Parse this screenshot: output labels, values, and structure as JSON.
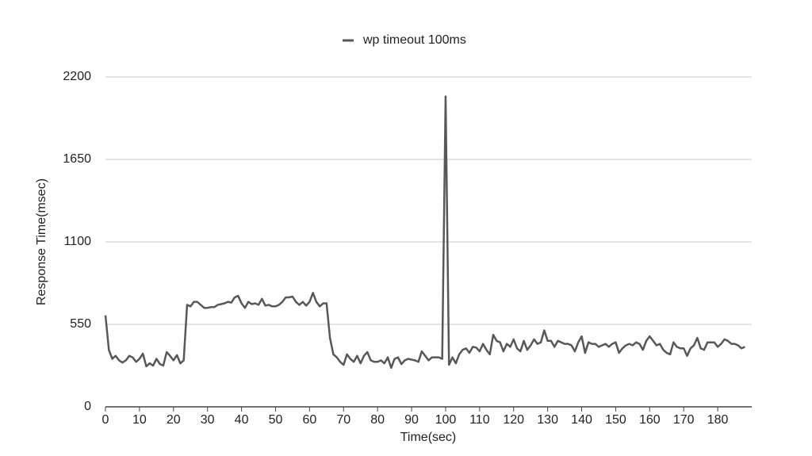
{
  "chart_data": {
    "type": "line",
    "xlabel": "Time(sec)",
    "ylabel": "Response Time(msec)",
    "x": [
      0,
      1,
      2,
      3,
      4,
      5,
      6,
      7,
      8,
      9,
      10,
      11,
      12,
      13,
      14,
      15,
      16,
      17,
      18,
      19,
      20,
      21,
      22,
      23,
      24,
      25,
      26,
      27,
      28,
      29,
      30,
      31,
      32,
      33,
      34,
      35,
      36,
      37,
      38,
      39,
      40,
      41,
      42,
      43,
      44,
      45,
      46,
      47,
      48,
      49,
      50,
      51,
      52,
      53,
      54,
      55,
      56,
      57,
      58,
      59,
      60,
      61,
      62,
      63,
      64,
      65,
      66,
      67,
      68,
      69,
      70,
      71,
      72,
      73,
      74,
      75,
      76,
      77,
      78,
      79,
      80,
      81,
      82,
      83,
      84,
      85,
      86,
      87,
      88,
      89,
      90,
      91,
      92,
      93,
      94,
      95,
      96,
      97,
      98,
      99,
      100,
      101,
      102,
      103,
      104,
      105,
      106,
      107,
      108,
      109,
      110,
      111,
      112,
      113,
      114,
      115,
      116,
      117,
      118,
      119,
      120,
      121,
      122,
      123,
      124,
      125,
      126,
      127,
      128,
      129,
      130,
      131,
      132,
      133,
      134,
      135,
      136,
      137,
      138,
      139,
      140,
      141,
      142,
      143,
      144,
      145,
      146,
      147,
      148,
      149,
      150,
      151,
      152,
      153,
      154,
      155,
      156,
      157,
      158,
      159,
      160,
      161,
      162,
      163,
      164,
      165,
      166,
      167,
      168,
      169,
      170,
      171,
      172,
      173,
      174,
      175,
      176,
      177,
      178,
      179,
      180,
      181,
      182,
      183,
      184,
      185,
      186,
      187,
      188
    ],
    "series": [
      {
        "name": "wp timeout 100ms",
        "color": "#58585a",
        "values": [
          610,
          380,
          320,
          340,
          310,
          295,
          310,
          340,
          330,
          300,
          320,
          355,
          270,
          290,
          275,
          320,
          285,
          275,
          365,
          340,
          310,
          345,
          290,
          310,
          680,
          670,
          700,
          700,
          680,
          660,
          660,
          665,
          665,
          680,
          685,
          690,
          700,
          695,
          730,
          740,
          690,
          660,
          700,
          685,
          690,
          680,
          720,
          675,
          680,
          670,
          670,
          680,
          700,
          730,
          730,
          735,
          700,
          680,
          700,
          675,
          700,
          760,
          700,
          670,
          690,
          690,
          460,
          350,
          330,
          300,
          280,
          350,
          320,
          300,
          340,
          290,
          340,
          365,
          310,
          300,
          300,
          310,
          290,
          330,
          260,
          320,
          330,
          285,
          310,
          320,
          315,
          310,
          300,
          370,
          340,
          310,
          330,
          330,
          330,
          320,
          2070,
          280,
          330,
          290,
          350,
          380,
          390,
          360,
          400,
          395,
          370,
          420,
          380,
          350,
          480,
          440,
          430,
          370,
          420,
          400,
          450,
          390,
          370,
          440,
          380,
          410,
          450,
          420,
          430,
          510,
          440,
          440,
          400,
          440,
          430,
          420,
          420,
          410,
          370,
          430,
          470,
          360,
          430,
          420,
          420,
          400,
          410,
          420,
          400,
          420,
          430,
          360,
          390,
          410,
          420,
          410,
          430,
          420,
          380,
          440,
          470,
          440,
          410,
          420,
          380,
          360,
          350,
          430,
          400,
          390,
          390,
          340,
          390,
          410,
          460,
          390,
          380,
          430,
          430,
          430,
          400,
          420,
          450,
          440,
          420,
          420,
          410,
          390,
          400
        ]
      }
    ],
    "xlim": [
      0,
      190
    ],
    "xticks": [
      0,
      10,
      20,
      30,
      40,
      50,
      60,
      70,
      80,
      90,
      100,
      110,
      120,
      130,
      140,
      150,
      160,
      170,
      180
    ],
    "ylim": [
      0,
      2200
    ],
    "yticks": [
      0,
      550,
      1100,
      1650,
      2200
    ],
    "grid": true
  }
}
